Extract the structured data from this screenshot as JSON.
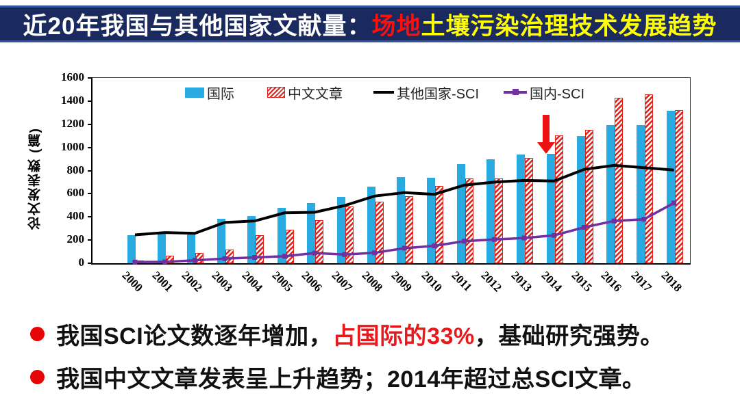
{
  "title": {
    "part1": "近20年我国与其他国家文献量：",
    "part2": "场地",
    "part3": "土壤污染治理技术发展趋势"
  },
  "chart_data": {
    "type": "combo",
    "title": "",
    "xlabel": "",
    "ylabel": "论文发表数 (篇)",
    "ylim": [
      0,
      1600
    ],
    "ytick_step": 200,
    "yticks": [
      0,
      200,
      400,
      600,
      800,
      1000,
      1200,
      1400,
      1600
    ],
    "grid": false,
    "legend_position": "top-inside",
    "categories": [
      "2000",
      "2001",
      "2002",
      "2003",
      "2004",
      "2005",
      "2006",
      "2007",
      "2008",
      "2009",
      "2010",
      "2011",
      "2012",
      "2013",
      "2014",
      "2015",
      "2016",
      "2017",
      "2018"
    ],
    "series": [
      {
        "name": "国际",
        "kind": "bar",
        "color": "#29abe2",
        "values": [
          240,
          265,
          260,
          385,
          410,
          480,
          520,
          575,
          660,
          745,
          740,
          855,
          900,
          940,
          945,
          1100,
          1195,
          1190,
          1315
        ]
      },
      {
        "name": "中文文章",
        "kind": "bar-hatched",
        "color": "#e32119",
        "values": [
          25,
          65,
          90,
          120,
          245,
          290,
          375,
          490,
          530,
          580,
          665,
          730,
          735,
          910,
          1105,
          1150,
          1430,
          1460,
          1325
        ]
      },
      {
        "name": "其他国家-SCI",
        "kind": "line",
        "color": "#000000",
        "values": [
          245,
          265,
          258,
          352,
          365,
          435,
          440,
          498,
          580,
          610,
          595,
          675,
          700,
          715,
          710,
          810,
          845,
          825,
          805
        ]
      },
      {
        "name": "国内-SCI",
        "kind": "line-marker",
        "color": "#7030a0",
        "values": [
          10,
          12,
          25,
          40,
          50,
          60,
          88,
          75,
          90,
          130,
          150,
          190,
          205,
          218,
          240,
          310,
          365,
          380,
          520
        ]
      }
    ],
    "annotation": {
      "type": "down-arrow",
      "at_category": "2014",
      "color": "#ee1111"
    }
  },
  "bullets": [
    {
      "parts": [
        {
          "text": "我国SCI论文数逐年增加，"
        },
        {
          "text": "占国际的33%"
        },
        {
          "text": "，基础研究强势。"
        }
      ]
    },
    {
      "parts": [
        {
          "text": "我国中文文章发表呈上升趋势；2014年超过总SCI文章。"
        }
      ]
    }
  ]
}
